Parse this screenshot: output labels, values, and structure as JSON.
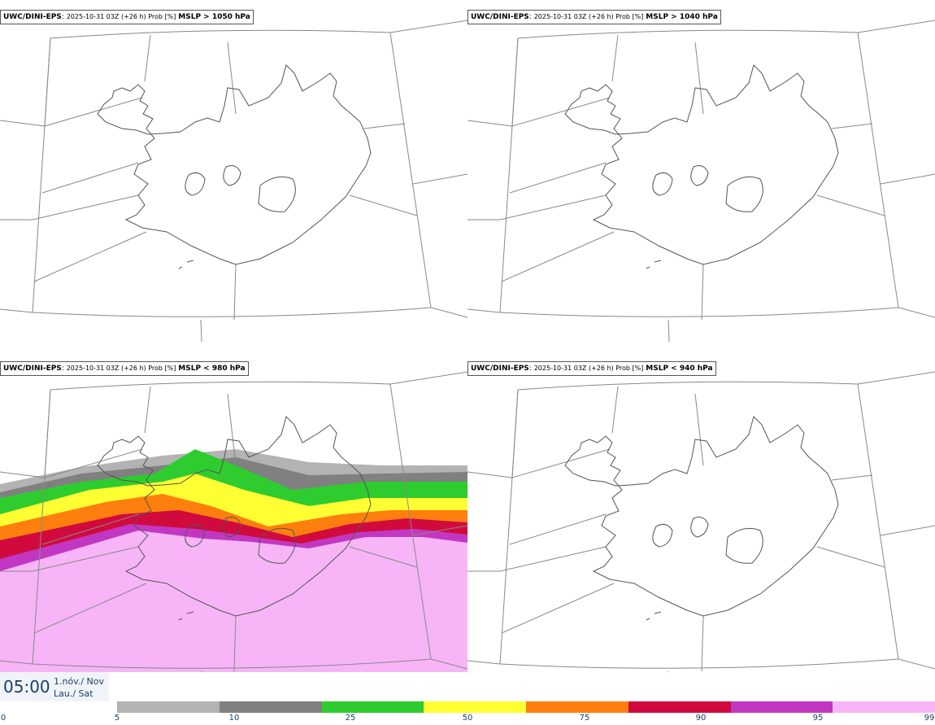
{
  "panels": [
    {
      "model": "UWC/DINI-EPS",
      "run": "2025-10-31 03Z (+26 h) Prob [%]",
      "threshold": "MSLP > 1050 hPa"
    },
    {
      "model": "UWC/DINI-EPS",
      "run": "2025-10-31 03Z (+26 h) Prob [%]",
      "threshold": "MSLP > 1040 hPa"
    },
    {
      "model": "UWC/DINI-EPS",
      "run": "2025-10-31 03Z (+26 h) Prob [%]",
      "threshold": "MSLP < 980 hPa"
    },
    {
      "model": "UWC/DINI-EPS",
      "run": "2025-10-31 03Z (+26 h) Prob [%]",
      "threshold": "MSLP < 940 hPa"
    }
  ],
  "valid_time": {
    "time": "05:00",
    "date_is_en": "1.nóv./ Nov",
    "day_is_en": "Lau./ Sat"
  },
  "legend": {
    "labels": [
      "0",
      "5",
      "10",
      "25",
      "50",
      "75",
      "90",
      "95",
      "99"
    ],
    "colors": [
      "#b3b3b3",
      "#808080",
      "#2ecc2e",
      "#ffff33",
      "#ff7f0e",
      "#d10a3e",
      "#c237c2",
      "#f7b5f7"
    ]
  },
  "map_colors": {
    "coast": "#555555",
    "grid": "#888888"
  }
}
